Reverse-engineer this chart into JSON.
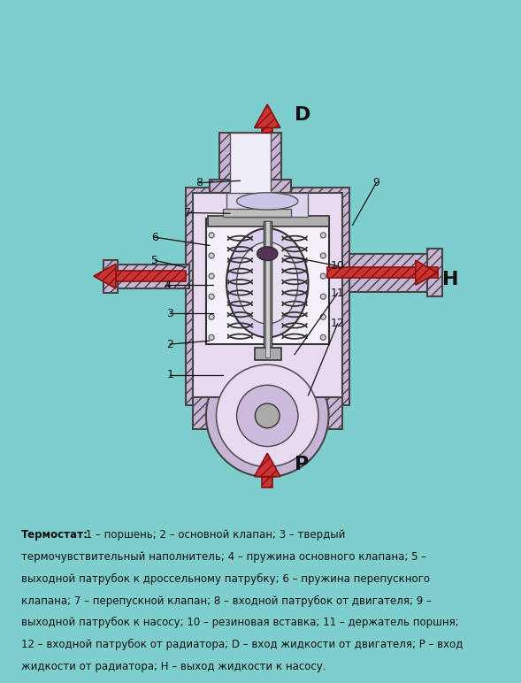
{
  "bg_color": "#7ecece",
  "caption_bold": "Термостат:",
  "caption_normal": " 1 – поршень; 2 – основной клапан; 3 – твердый термочувствительный наполнитель; 4 – пружина основного клапана; 5 – выходной патрубок к дроссельному патрубку; 6 – пружина перепускного клапана; 7 – перепускной клапан; 8 – входной патрубок от двигателя; 9 – выходной патрубок к насосу; 10 – резиновая вставка; 11 – держатель поршня; 12 – входной патрубок от радиатора; D – вход жидкости от двигателя; P – вход жидкости от радиатора; H – выход жидкости к насосу.",
  "body_color": "#c8b4d4",
  "inner_color": "#e8daf0",
  "arrow_fc": "#cc3333",
  "arrow_ec": "#881111",
  "label_color": "#111111",
  "line_color": "#333333",
  "caption_lines": [
    "Термостат:",
    " 1 – поршень; 2 – основной клапан; 3 – твердый",
    "термочувствительный наполнитель; 4 – пружина основного клапана; 5 –",
    "выходной патрубок к дроссельному патрубку; 6 – пружина перепускного",
    "клапана; 7 – перепускной клапан; 8 – входной патрубок от двигателя; 9 –",
    "выходной патрубок к насосу; 10 – резиновая вставка; 11 – держатель поршня;",
    "12 – входной патрубок от радиатора; D – вход жидкости от двигателя; P – вход",
    "жидкости от радиатора; H – выход жидкости к насосу."
  ]
}
